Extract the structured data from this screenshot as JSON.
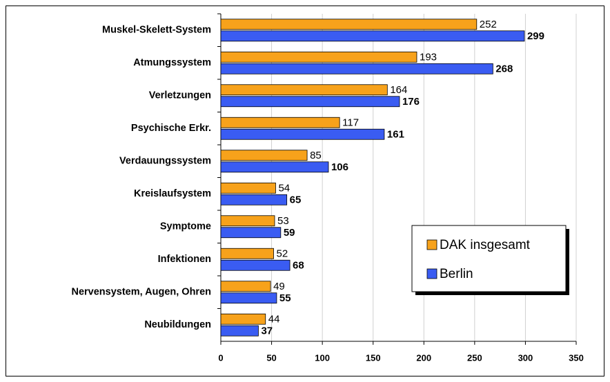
{
  "chart_data": {
    "type": "barh",
    "categories": [
      "Muskel-Skelett-System",
      "Atmungssystem",
      "Verletzungen",
      "Psychische Erkr.",
      "Verdauungssystem",
      "Kreislaufsystem",
      "Symptome",
      "Infektionen",
      "Nervensystem, Augen, Ohren",
      "Neubildungen"
    ],
    "series": [
      {
        "name": "DAK insgesamt",
        "color": "#f7a21b",
        "values": [
          252,
          193,
          164,
          117,
          85,
          54,
          53,
          52,
          49,
          44
        ]
      },
      {
        "name": "Berlin",
        "color": "#3a5cf2",
        "values": [
          299,
          268,
          176,
          161,
          106,
          65,
          59,
          68,
          55,
          37
        ]
      }
    ],
    "xlim": [
      0,
      350
    ],
    "xticks": [
      0,
      50,
      100,
      150,
      200,
      250,
      300,
      350
    ],
    "grid": true,
    "legend": "right"
  }
}
